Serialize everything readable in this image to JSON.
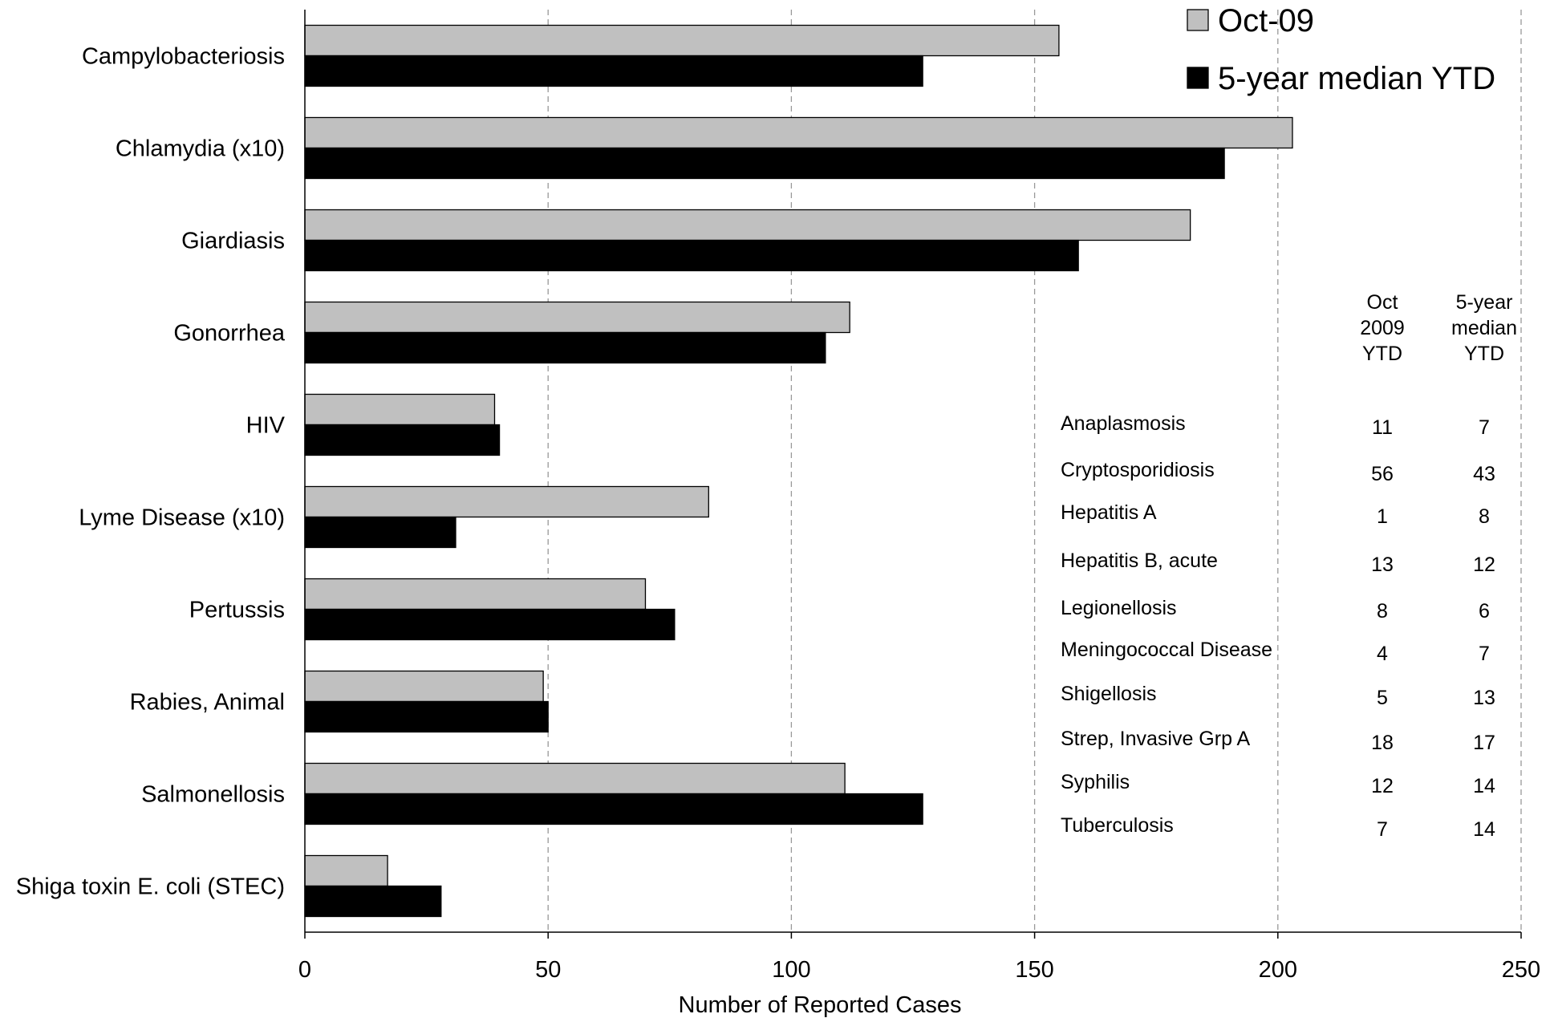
{
  "chart_data": {
    "type": "bar",
    "orientation": "horizontal",
    "categories": [
      "Campylobacteriosis",
      "Chlamydia (x10)",
      "Giardiasis",
      "Gonorrhea",
      "HIV",
      "Lyme Disease (x10)",
      "Pertussis",
      "Rabies, Animal",
      "Salmonellosis",
      "Shiga toxin E. coli (STEC)"
    ],
    "series": [
      {
        "name": "Oct-09",
        "color": "#c0c0c0",
        "values": [
          155,
          203,
          182,
          112,
          39,
          83,
          70,
          49,
          111,
          17
        ]
      },
      {
        "name": "5-year median YTD",
        "color": "#000000",
        "values": [
          127,
          189,
          159,
          107,
          40,
          31,
          76,
          50,
          127,
          28
        ]
      }
    ],
    "xlabel": "Number of Reported Cases",
    "ylabel": "",
    "xlim": [
      0,
      250
    ],
    "xticks": [
      0,
      50,
      100,
      150,
      200,
      250
    ],
    "grid": "vertical dashed",
    "legend": "top-right"
  },
  "table": {
    "headers": [
      "Oct 2009 YTD",
      "5-year median YTD"
    ],
    "rows": [
      {
        "name": "Anaplasmosis",
        "oct": "11",
        "median": "7"
      },
      {
        "name": "Cryptosporidiosis",
        "oct": "56",
        "median": "43"
      },
      {
        "name": "Hepatitis A",
        "oct": "1",
        "median": "8"
      },
      {
        "name": "Hepatitis B, acute",
        "oct": "13",
        "median": "12"
      },
      {
        "name": "Legionellosis",
        "oct": "8",
        "median": "6"
      },
      {
        "name": "Meningococcal Disease",
        "oct": "4",
        "median": "7"
      },
      {
        "name": "Shigellosis",
        "oct": "5",
        "median": "13"
      },
      {
        "name": "Strep, Invasive Grp A",
        "oct": "18",
        "median": "17"
      },
      {
        "name": "Syphilis",
        "oct": "12",
        "median": "14"
      },
      {
        "name": "Tuberculosis",
        "oct": "7",
        "median": "14"
      }
    ]
  }
}
